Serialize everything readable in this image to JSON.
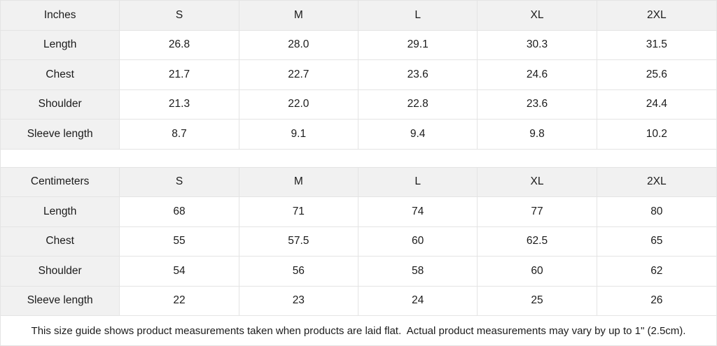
{
  "colors": {
    "header_bg": "#f1f1f1",
    "cell_bg": "#ffffff",
    "border": "#e4e4e4",
    "text": "#1b1b1b"
  },
  "tables": [
    {
      "unit_label": "Inches",
      "sizes": [
        "S",
        "M",
        "L",
        "XL",
        "2XL"
      ],
      "rows": [
        {
          "label": "Length",
          "values": [
            "26.8",
            "28.0",
            "29.1",
            "30.3",
            "31.5"
          ]
        },
        {
          "label": "Chest",
          "values": [
            "21.7",
            "22.7",
            "23.6",
            "24.6",
            "25.6"
          ]
        },
        {
          "label": "Shoulder",
          "values": [
            "21.3",
            "22.0",
            "22.8",
            "23.6",
            "24.4"
          ]
        },
        {
          "label": "Sleeve length",
          "values": [
            "8.7",
            "9.1",
            "9.4",
            "9.8",
            "10.2"
          ]
        }
      ]
    },
    {
      "unit_label": "Centimeters",
      "sizes": [
        "S",
        "M",
        "L",
        "XL",
        "2XL"
      ],
      "rows": [
        {
          "label": "Length",
          "values": [
            "68",
            "71",
            "74",
            "77",
            "80"
          ]
        },
        {
          "label": "Chest",
          "values": [
            "55",
            "57.5",
            "60",
            "62.5",
            "65"
          ]
        },
        {
          "label": "Shoulder",
          "values": [
            "54",
            "56",
            "58",
            "60",
            "62"
          ]
        },
        {
          "label": "Sleeve length",
          "values": [
            "22",
            "23",
            "24",
            "25",
            "26"
          ]
        }
      ]
    }
  ],
  "disclaimer": "This size guide shows product measurements taken when products are laid flat.  Actual product measurements may vary by up to 1\" (2.5cm)."
}
